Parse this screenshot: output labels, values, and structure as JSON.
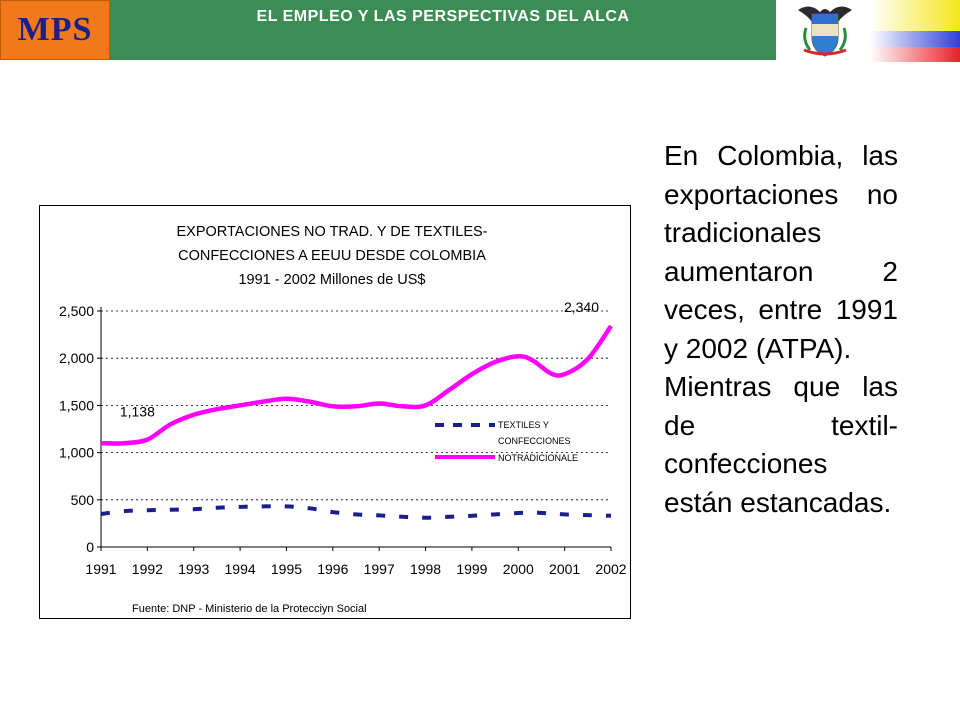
{
  "header": {
    "logo_text": "MPS",
    "title": "EL EMPLEO Y LAS PERSPECTIVAS DEL ALCA",
    "accent_color": "#3d8c56",
    "logo_color": "#f07a1a",
    "emblem_icon": "colombia-coat-of-arms-icon"
  },
  "text_block": {
    "paragraph_1": "En Colombia, las exportaciones no tradicionales aumentaron 2 veces, entre 1991 y 2002 (ATPA).",
    "paragraph_2": "Mientras que las de textil-confecciones están estancadas."
  },
  "chart_data": {
    "type": "line",
    "title_lines": [
      "EXPORTACIONES NO TRAD. Y DE TEXTILES-",
      "CONFECCIONES A EEUU DESDE COLOMBIA",
      "1991 - 2002 Millones de US$"
    ],
    "x": [
      1991,
      1991.5,
      1992,
      1992.5,
      1993,
      1993.5,
      1994,
      1994.5,
      1995,
      1995.5,
      1996,
      1996.5,
      1997,
      1997.5,
      1998,
      1998.5,
      1999,
      1999.5,
      2000,
      2000.3,
      2000.7,
      2001,
      2001.5,
      2002
    ],
    "x_ticks": [
      "1991",
      "1992",
      "1993",
      "1994",
      "1995",
      "1996",
      "1997",
      "1998",
      "1999",
      "2000",
      "2001",
      "2002"
    ],
    "y_ticks": [
      "0",
      "500",
      "1,000",
      "1,500",
      "2,000",
      "2,500"
    ],
    "ylim": [
      0,
      2500
    ],
    "grid": true,
    "series": [
      {
        "name": "TEXTILES Y CONFECCIONES",
        "style": "dashed",
        "color": "#1a1f8c",
        "values": [
          350,
          380,
          390,
          395,
          400,
          415,
          425,
          430,
          430,
          410,
          370,
          345,
          335,
          320,
          310,
          320,
          330,
          345,
          360,
          365,
          355,
          345,
          338,
          330
        ]
      },
      {
        "name": "NOTRADICIONALE",
        "style": "solid",
        "color": "#ff00ff",
        "values": [
          1100,
          1100,
          1138,
          1300,
          1400,
          1460,
          1500,
          1540,
          1570,
          1540,
          1490,
          1490,
          1520,
          1490,
          1500,
          1660,
          1830,
          1960,
          2020,
          1980,
          1840,
          1830,
          1990,
          2340
        ]
      }
    ],
    "annotations": [
      {
        "text": "1,138",
        "x": 1992,
        "y": 1138
      },
      {
        "text": "2,340",
        "x": 2002,
        "y": 2340
      }
    ],
    "legend_lines": [
      "TEXTILES Y",
      "CONFECCIONES",
      "NOTRADICIONALE"
    ],
    "legend_placement": "right-middle",
    "source": "Fuente: DNP - Ministerio de la Protecciyn Social"
  }
}
